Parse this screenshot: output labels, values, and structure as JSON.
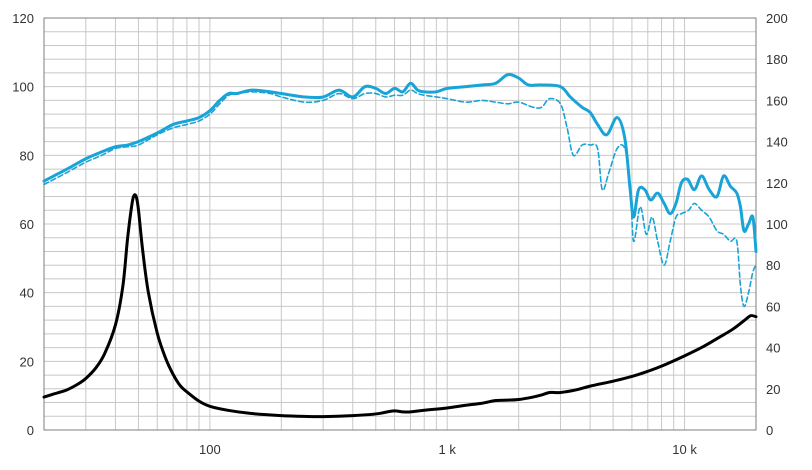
{
  "chart_data": {
    "type": "line",
    "title": "",
    "xlabel": "",
    "ylabel": "",
    "x_scale": "log",
    "xlim": [
      20,
      20000
    ],
    "x_tick_labels": [
      {
        "value": 100,
        "label": "100"
      },
      {
        "value": 1000,
        "label": "1 k"
      },
      {
        "value": 10000,
        "label": "10 k"
      }
    ],
    "y_left": {
      "lim": [
        0,
        120
      ],
      "ticks": [
        0,
        20,
        40,
        60,
        80,
        100,
        120
      ]
    },
    "y_right": {
      "lim": [
        0,
        200
      ],
      "ticks": [
        0,
        20,
        40,
        60,
        80,
        100,
        120,
        140,
        160,
        180,
        200
      ]
    },
    "grid": true,
    "legend": "none",
    "colors": {
      "spl": "#18a4d6",
      "impedance": "#000000",
      "grid": "#c8c8c8",
      "axis": "#7f7f7f"
    },
    "series": [
      {
        "style": "solid",
        "axis": "left",
        "color": "#18a4d6",
        "points": [
          [
            20,
            72.5
          ],
          [
            22,
            74
          ],
          [
            25,
            76
          ],
          [
            30,
            79
          ],
          [
            35,
            81
          ],
          [
            40,
            82.5
          ],
          [
            45,
            83
          ],
          [
            50,
            84
          ],
          [
            60,
            86.5
          ],
          [
            70,
            89
          ],
          [
            80,
            90
          ],
          [
            90,
            91
          ],
          [
            100,
            93
          ],
          [
            110,
            96
          ],
          [
            120,
            98
          ],
          [
            130,
            98
          ],
          [
            150,
            99
          ],
          [
            180,
            98.5
          ],
          [
            200,
            98
          ],
          [
            250,
            97
          ],
          [
            300,
            97
          ],
          [
            350,
            99
          ],
          [
            400,
            97
          ],
          [
            450,
            100
          ],
          [
            500,
            99.5
          ],
          [
            550,
            98
          ],
          [
            600,
            99.5
          ],
          [
            650,
            98.5
          ],
          [
            700,
            101
          ],
          [
            750,
            99
          ],
          [
            800,
            98.5
          ],
          [
            900,
            98.5
          ],
          [
            1000,
            99.5
          ],
          [
            1200,
            100
          ],
          [
            1400,
            100.5
          ],
          [
            1600,
            101
          ],
          [
            1800,
            103.5
          ],
          [
            2000,
            102.5
          ],
          [
            2200,
            100.5
          ],
          [
            2500,
            100.5
          ],
          [
            3000,
            100
          ],
          [
            3300,
            97
          ],
          [
            3700,
            94
          ],
          [
            4000,
            92.5
          ],
          [
            4300,
            89
          ],
          [
            4700,
            86
          ],
          [
            5200,
            91
          ],
          [
            5600,
            85
          ],
          [
            5900,
            70
          ],
          [
            6100,
            62
          ],
          [
            6400,
            70
          ],
          [
            6800,
            70
          ],
          [
            7200,
            67
          ],
          [
            7700,
            69
          ],
          [
            8200,
            66
          ],
          [
            8700,
            63
          ],
          [
            9200,
            66
          ],
          [
            9700,
            72
          ],
          [
            10300,
            73
          ],
          [
            11000,
            70
          ],
          [
            11800,
            74
          ],
          [
            12700,
            70
          ],
          [
            13700,
            68
          ],
          [
            14600,
            74
          ],
          [
            15600,
            71
          ],
          [
            16600,
            69
          ],
          [
            17200,
            65
          ],
          [
            17800,
            58
          ],
          [
            18600,
            60
          ],
          [
            19400,
            62
          ],
          [
            20000,
            52
          ]
        ]
      },
      {
        "style": "dashed",
        "axis": "left",
        "color": "#18a4d6",
        "points": [
          [
            20,
            71.5
          ],
          [
            22,
            73
          ],
          [
            25,
            75
          ],
          [
            30,
            78
          ],
          [
            35,
            80
          ],
          [
            40,
            82
          ],
          [
            45,
            82.5
          ],
          [
            50,
            83
          ],
          [
            60,
            86
          ],
          [
            70,
            88
          ],
          [
            80,
            89
          ],
          [
            90,
            90
          ],
          [
            100,
            92
          ],
          [
            110,
            95
          ],
          [
            120,
            97.5
          ],
          [
            130,
            98
          ],
          [
            150,
            98.5
          ],
          [
            180,
            98
          ],
          [
            200,
            97
          ],
          [
            250,
            95.5
          ],
          [
            300,
            96
          ],
          [
            350,
            98
          ],
          [
            400,
            96.5
          ],
          [
            450,
            98
          ],
          [
            500,
            98
          ],
          [
            550,
            97
          ],
          [
            600,
            97.5
          ],
          [
            650,
            97.5
          ],
          [
            700,
            99
          ],
          [
            750,
            98
          ],
          [
            800,
            97.5
          ],
          [
            900,
            97
          ],
          [
            1000,
            96.5
          ],
          [
            1200,
            95.5
          ],
          [
            1400,
            96
          ],
          [
            1600,
            95.5
          ],
          [
            1800,
            95
          ],
          [
            2000,
            95.5
          ],
          [
            2300,
            94
          ],
          [
            2500,
            94
          ],
          [
            2700,
            96.5
          ],
          [
            3000,
            95
          ],
          [
            3200,
            88
          ],
          [
            3400,
            80
          ],
          [
            3700,
            83
          ],
          [
            4000,
            83
          ],
          [
            4300,
            82
          ],
          [
            4500,
            70
          ],
          [
            4800,
            75
          ],
          [
            5200,
            82
          ],
          [
            5600,
            82
          ],
          [
            5900,
            72
          ],
          [
            6100,
            55
          ],
          [
            6500,
            65
          ],
          [
            6900,
            57
          ],
          [
            7300,
            62
          ],
          [
            7700,
            55
          ],
          [
            8200,
            48
          ],
          [
            8700,
            55
          ],
          [
            9200,
            62
          ],
          [
            9700,
            63
          ],
          [
            10400,
            64
          ],
          [
            11000,
            66
          ],
          [
            11800,
            64
          ],
          [
            12700,
            62
          ],
          [
            13700,
            58
          ],
          [
            14600,
            57
          ],
          [
            15600,
            55
          ],
          [
            16600,
            55
          ],
          [
            17200,
            42
          ],
          [
            17800,
            36
          ],
          [
            18600,
            40
          ],
          [
            19400,
            46
          ],
          [
            20000,
            48
          ]
        ]
      },
      {
        "style": "solid",
        "axis": "right",
        "color": "#000000",
        "points": [
          [
            20,
            16
          ],
          [
            22,
            17.5
          ],
          [
            25,
            19.5
          ],
          [
            28,
            22.5
          ],
          [
            30,
            25
          ],
          [
            33,
            30
          ],
          [
            36,
            37
          ],
          [
            40,
            51
          ],
          [
            43,
            70
          ],
          [
            45,
            93
          ],
          [
            47,
            110
          ],
          [
            48,
            114
          ],
          [
            49,
            113
          ],
          [
            50,
            107
          ],
          [
            52,
            88
          ],
          [
            55,
            67
          ],
          [
            60,
            47
          ],
          [
            65,
            35
          ],
          [
            70,
            27
          ],
          [
            75,
            21.5
          ],
          [
            80,
            18.5
          ],
          [
            90,
            14
          ],
          [
            100,
            11.5
          ],
          [
            120,
            9.5
          ],
          [
            150,
            8
          ],
          [
            200,
            7
          ],
          [
            250,
            6.6
          ],
          [
            300,
            6.5
          ],
          [
            400,
            7
          ],
          [
            500,
            7.8
          ],
          [
            560,
            8.8
          ],
          [
            600,
            9.3
          ],
          [
            650,
            8.8
          ],
          [
            700,
            8.8
          ],
          [
            800,
            9.6
          ],
          [
            1000,
            10.7
          ],
          [
            1200,
            12
          ],
          [
            1400,
            13
          ],
          [
            1600,
            14.3
          ],
          [
            1800,
            14.5
          ],
          [
            2000,
            14.8
          ],
          [
            2300,
            16
          ],
          [
            2500,
            17
          ],
          [
            2700,
            18.2
          ],
          [
            3000,
            18.2
          ],
          [
            3500,
            19.5
          ],
          [
            4000,
            21.3
          ],
          [
            5000,
            23.7
          ],
          [
            6000,
            26
          ],
          [
            7000,
            28.5
          ],
          [
            8000,
            31
          ],
          [
            10000,
            36
          ],
          [
            12000,
            40.5
          ],
          [
            14000,
            45
          ],
          [
            16000,
            49
          ],
          [
            18000,
            53.5
          ],
          [
            19000,
            55.5
          ],
          [
            20000,
            55
          ]
        ]
      }
    ]
  }
}
